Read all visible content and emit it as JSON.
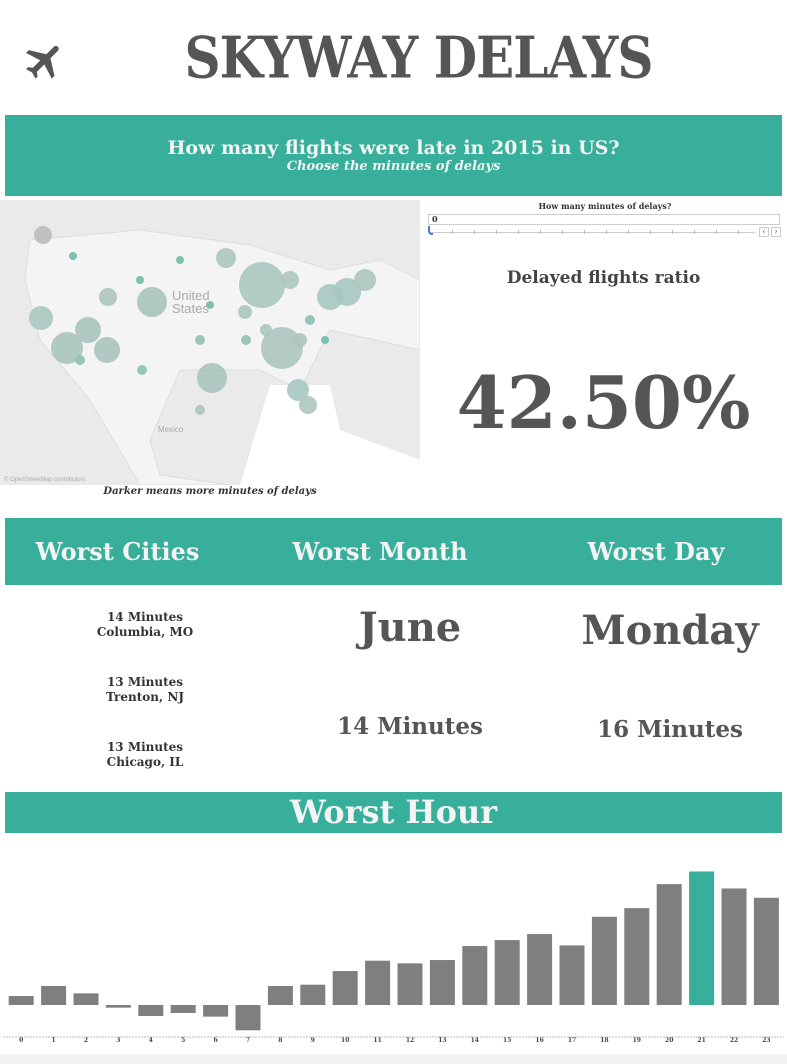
{
  "header": {
    "title": "SKYWAY DELAYS",
    "icon": "airplane-icon"
  },
  "banner": {
    "question": "How many flights were late in 2015 in US?",
    "subtitle": "Choose the minutes of delays"
  },
  "map": {
    "labels": {
      "us": "United States",
      "mexico": "Mexico"
    },
    "attribution": "© OpenStreetMap contributors",
    "caption": "Darker means more minutes of delays"
  },
  "filter": {
    "label": "How many minutes of delays?",
    "value": "0",
    "prev_icon": "chevron-left-icon",
    "next_icon": "chevron-right-icon"
  },
  "kpi": {
    "label": "Delayed flights ratio",
    "value": "42.50%"
  },
  "sections": {
    "cities": "Worst Cities",
    "month": "Worst Month",
    "day": "Worst Day"
  },
  "worst_cities": [
    {
      "minutes": "14 Minutes",
      "city": "Columbia, MO"
    },
    {
      "minutes": "13 Minutes",
      "city": "Trenton, NJ"
    },
    {
      "minutes": "13 Minutes",
      "city": "Chicago, IL"
    }
  ],
  "worst_month": {
    "name": "June",
    "minutes": "14 Minutes"
  },
  "worst_day": {
    "name": "Monday",
    "minutes": "16 Minutes"
  },
  "hour": {
    "title": "Worst Hour"
  },
  "colors": {
    "accent": "#38af9b",
    "bar": "#7f7f7f",
    "text": "#555555"
  },
  "chart_data": {
    "type": "bar",
    "categories": [
      "0",
      "1",
      "2",
      "3",
      "4",
      "5",
      "6",
      "7",
      "8",
      "9",
      "10",
      "11",
      "12",
      "13",
      "14",
      "15",
      "16",
      "17",
      "18",
      "19",
      "20",
      "21",
      "22",
      "23"
    ],
    "values": [
      2.7,
      5.7,
      3.5,
      -0.8,
      -3.3,
      -2.4,
      -3.5,
      -7.6,
      5.7,
      6.1,
      10.2,
      13.3,
      12.5,
      13.5,
      17.7,
      19.5,
      21.3,
      17.9,
      26.5,
      29.1,
      36.3,
      40.1,
      35.0,
      32.2
    ],
    "highlight": "21",
    "title": "",
    "xlabel": "",
    "ylabel": ""
  }
}
